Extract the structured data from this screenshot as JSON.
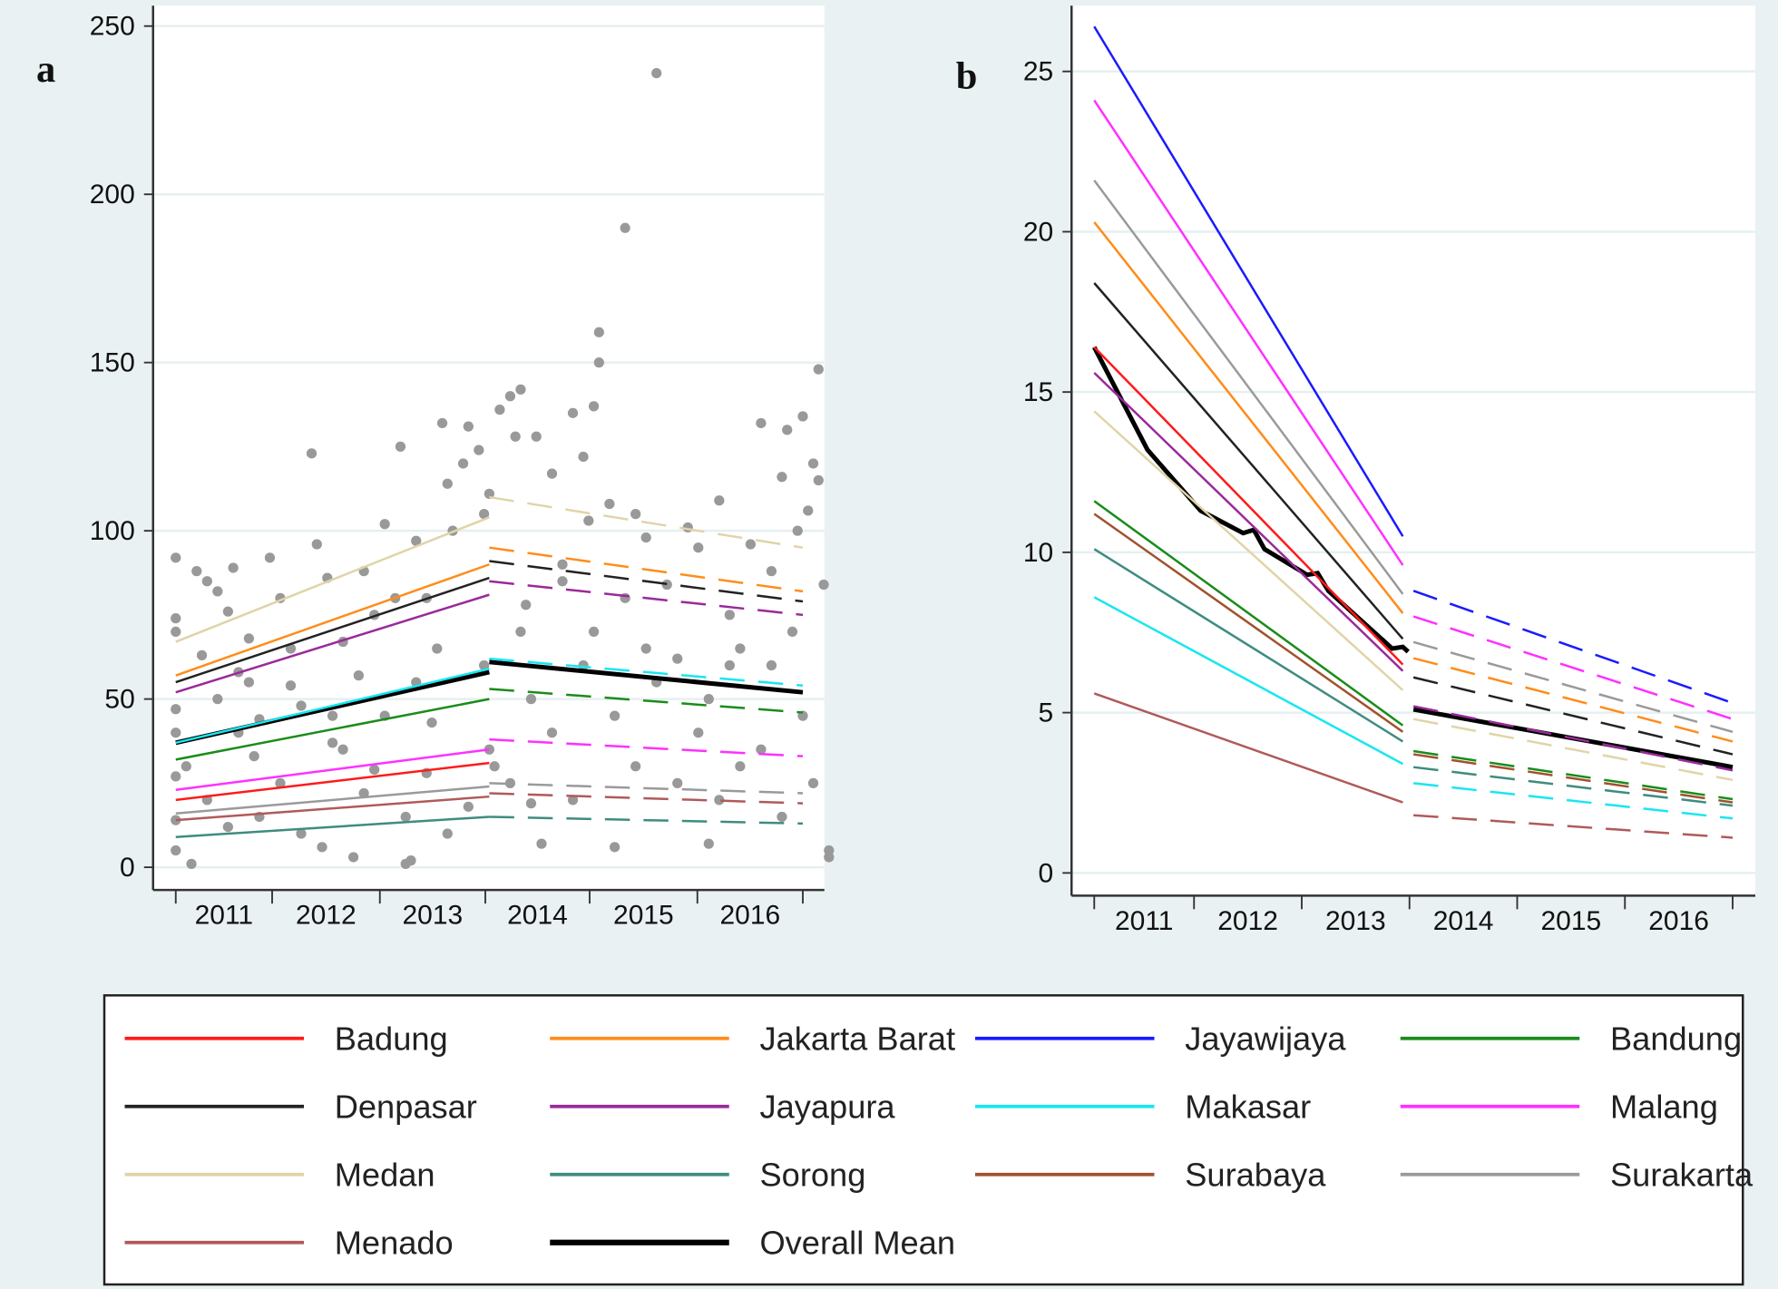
{
  "legend": {
    "items": [
      {
        "name": "Badung",
        "color": "#ff1a1a",
        "width": 2
      },
      {
        "name": "Jakarta Barat",
        "color": "#ff8c1a",
        "width": 2
      },
      {
        "name": "Jayawijaya",
        "color": "#1a1aff",
        "width": 2
      },
      {
        "name": "Bandung",
        "color": "#1a8c1a",
        "width": 2
      },
      {
        "name": "Denpasar",
        "color": "#222222",
        "width": 2
      },
      {
        "name": "Jayapura",
        "color": "#9a2a9a",
        "width": 2
      },
      {
        "name": "Makasar",
        "color": "#19e6f0",
        "width": 2
      },
      {
        "name": "Malang",
        "color": "#ff30ff",
        "width": 2
      },
      {
        "name": "Medan",
        "color": "#e0d4a8",
        "width": 2
      },
      {
        "name": "Sorong",
        "color": "#3e8c80",
        "width": 2
      },
      {
        "name": "Surabaya",
        "color": "#a0522d",
        "width": 2
      },
      {
        "name": "Surakarta",
        "color": "#9a9a9a",
        "width": 2
      },
      {
        "name": "Menado",
        "color": "#b05a5a",
        "width": 2
      },
      {
        "name": "Overall Mean",
        "color": "#000000",
        "width": 4
      }
    ]
  },
  "chart_data": [
    {
      "type": "line",
      "panel_label": "a",
      "ylim": [
        0,
        250
      ],
      "yticks": [
        0,
        50,
        100,
        150,
        200,
        250
      ],
      "xticks": [
        "2011",
        "2012",
        "2013",
        "2014",
        "2015",
        "2016"
      ],
      "grid": true,
      "series": [
        {
          "name": "Medan",
          "pre": [
            67,
            104
          ],
          "post": [
            110,
            95
          ]
        },
        {
          "name": "Jakarta Barat",
          "pre": [
            57,
            90
          ],
          "post": [
            95,
            82
          ]
        },
        {
          "name": "Denpasar",
          "pre": [
            55,
            86
          ],
          "post": [
            91,
            79
          ]
        },
        {
          "name": "Jayapura",
          "pre": [
            52,
            81
          ],
          "post": [
            85,
            75
          ]
        },
        {
          "name": "Makasar",
          "pre": [
            37,
            59
          ],
          "post": [
            62,
            54
          ]
        },
        {
          "name": "Overall Mean",
          "pre": [
            37,
            58
          ],
          "post": [
            61,
            52
          ]
        },
        {
          "name": "Bandung",
          "pre": [
            32,
            50
          ],
          "post": [
            53,
            46
          ]
        },
        {
          "name": "Malang",
          "pre": [
            23,
            35
          ],
          "post": [
            38,
            33
          ]
        },
        {
          "name": "Badung",
          "pre": [
            20,
            31
          ],
          "post": null
        },
        {
          "name": "Surakarta",
          "pre": [
            16,
            24
          ],
          "post": [
            25,
            22
          ]
        },
        {
          "name": "Menado",
          "pre": [
            14,
            21
          ],
          "post": [
            22,
            19
          ]
        },
        {
          "name": "Sorong",
          "pre": [
            9,
            15
          ],
          "post": [
            15,
            13
          ]
        }
      ],
      "points": [
        [
          2011.0,
          92
        ],
        [
          2011.0,
          74
        ],
        [
          2011.0,
          70
        ],
        [
          2011.0,
          47
        ],
        [
          2011.0,
          40
        ],
        [
          2011.0,
          27
        ],
        [
          2011.0,
          14
        ],
        [
          2011.0,
          5
        ],
        [
          2011.15,
          1
        ],
        [
          2011.2,
          88
        ],
        [
          2011.25,
          63
        ],
        [
          2011.3,
          85
        ],
        [
          2011.4,
          82
        ],
        [
          2011.5,
          76
        ],
        [
          2011.55,
          89
        ],
        [
          2011.6,
          58
        ],
        [
          2011.7,
          68
        ],
        [
          2011.75,
          33
        ],
        [
          2011.8,
          44
        ],
        [
          2011.9,
          92
        ],
        [
          2012.0,
          80
        ],
        [
          2012.1,
          54
        ],
        [
          2012.2,
          48
        ],
        [
          2012.3,
          123
        ],
        [
          2012.35,
          96
        ],
        [
          2012.45,
          86
        ],
        [
          2012.5,
          37
        ],
        [
          2012.6,
          67
        ],
        [
          2012.7,
          3
        ],
        [
          2012.75,
          57
        ],
        [
          2012.8,
          88
        ],
        [
          2012.9,
          29
        ],
        [
          2013.0,
          102
        ],
        [
          2013.1,
          80
        ],
        [
          2013.15,
          125
        ],
        [
          2013.2,
          1
        ],
        [
          2013.25,
          2
        ],
        [
          2013.3,
          97
        ],
        [
          2013.4,
          80
        ],
        [
          2013.45,
          43
        ],
        [
          2013.55,
          132
        ],
        [
          2013.6,
          114
        ],
        [
          2013.65,
          100
        ],
        [
          2013.75,
          120
        ],
        [
          2013.8,
          131
        ],
        [
          2013.9,
          124
        ],
        [
          2013.95,
          105
        ],
        [
          2013.95,
          60
        ],
        [
          2014.0,
          111
        ],
        [
          2014.05,
          30
        ],
        [
          2014.1,
          136
        ],
        [
          2014.2,
          140
        ],
        [
          2014.25,
          128
        ],
        [
          2014.3,
          142
        ],
        [
          2014.35,
          78
        ],
        [
          2014.4,
          19
        ],
        [
          2014.45,
          128
        ],
        [
          2014.5,
          7
        ],
        [
          2014.6,
          117
        ],
        [
          2014.7,
          90
        ],
        [
          2014.8,
          135
        ],
        [
          2014.9,
          122
        ],
        [
          2014.95,
          103
        ],
        [
          2015.0,
          137
        ],
        [
          2015.05,
          159
        ],
        [
          2015.05,
          150
        ],
        [
          2015.15,
          108
        ],
        [
          2015.2,
          6
        ],
        [
          2015.3,
          190
        ],
        [
          2015.4,
          105
        ],
        [
          2015.5,
          98
        ],
        [
          2015.6,
          236
        ],
        [
          2015.7,
          84
        ],
        [
          2015.8,
          62
        ],
        [
          2015.9,
          101
        ],
        [
          2016.0,
          95
        ],
        [
          2016.1,
          7
        ],
        [
          2016.2,
          109
        ],
        [
          2016.3,
          60
        ],
        [
          2016.4,
          30
        ],
        [
          2016.5,
          96
        ],
        [
          2016.6,
          132
        ],
        [
          2016.7,
          88
        ],
        [
          2016.8,
          116
        ],
        [
          2016.85,
          130
        ],
        [
          2016.95,
          100
        ],
        [
          2017.0,
          134
        ],
        [
          2017.05,
          106
        ],
        [
          2017.1,
          120
        ],
        [
          2017.15,
          148
        ],
        [
          2017.15,
          115
        ],
        [
          2017.2,
          84
        ],
        [
          2017.25,
          5
        ],
        [
          2017.25,
          3
        ],
        [
          2011.1,
          30
        ],
        [
          2011.3,
          20
        ],
        [
          2011.5,
          12
        ],
        [
          2011.6,
          40
        ],
        [
          2011.8,
          15
        ],
        [
          2012.0,
          25
        ],
        [
          2012.2,
          10
        ],
        [
          2012.4,
          6
        ],
        [
          2012.6,
          35
        ],
        [
          2012.8,
          22
        ],
        [
          2013.0,
          45
        ],
        [
          2013.2,
          15
        ],
        [
          2013.4,
          28
        ],
        [
          2013.6,
          10
        ],
        [
          2013.8,
          18
        ],
        [
          2014.0,
          35
        ],
        [
          2014.2,
          25
        ],
        [
          2014.4,
          50
        ],
        [
          2014.6,
          40
        ],
        [
          2014.8,
          20
        ],
        [
          2015.0,
          70
        ],
        [
          2015.2,
          45
        ],
        [
          2015.4,
          30
        ],
        [
          2015.6,
          55
        ],
        [
          2015.8,
          25
        ],
        [
          2016.0,
          40
        ],
        [
          2016.2,
          20
        ],
        [
          2016.4,
          65
        ],
        [
          2016.6,
          35
        ],
        [
          2016.8,
          15
        ],
        [
          2017.0,
          45
        ],
        [
          2017.1,
          25
        ],
        [
          2011.4,
          50
        ],
        [
          2012.1,
          65
        ],
        [
          2012.9,
          75
        ],
        [
          2013.5,
          65
        ],
        [
          2014.3,
          70
        ],
        [
          2014.9,
          60
        ],
        [
          2015.5,
          65
        ],
        [
          2016.3,
          75
        ],
        [
          2016.9,
          70
        ],
        [
          2011.7,
          55
        ],
        [
          2012.5,
          45
        ],
        [
          2013.3,
          55
        ],
        [
          2014.7,
          85
        ],
        [
          2015.3,
          80
        ],
        [
          2016.1,
          50
        ],
        [
          2016.7,
          60
        ]
      ]
    },
    {
      "type": "line",
      "panel_label": "b",
      "ylim": [
        0,
        27
      ],
      "yticks": [
        0,
        5,
        10,
        15,
        20,
        25
      ],
      "xticks": [
        "2011",
        "2012",
        "2013",
        "2014",
        "2015",
        "2016"
      ],
      "grid": true,
      "series": [
        {
          "name": "Jayawijaya",
          "pre": [
            26.4,
            10.5
          ],
          "post": [
            8.8,
            5.3
          ]
        },
        {
          "name": "Malang",
          "pre": [
            24.1,
            9.6
          ],
          "post": [
            8.0,
            4.8
          ]
        },
        {
          "name": "Surakarta",
          "pre": [
            21.6,
            8.7
          ],
          "post": [
            7.2,
            4.4
          ]
        },
        {
          "name": "Jakarta Barat",
          "pre": [
            20.3,
            8.1
          ],
          "post": [
            6.7,
            4.1
          ]
        },
        {
          "name": "Denpasar",
          "pre": [
            18.4,
            7.3
          ],
          "post": [
            6.1,
            3.7
          ]
        },
        {
          "name": "Badung",
          "pre": [
            16.4,
            6.5
          ],
          "post": null
        },
        {
          "name": "Jayapura",
          "pre": [
            15.6,
            6.3
          ],
          "post": [
            5.2,
            3.2
          ]
        },
        {
          "name": "Medan",
          "pre": [
            14.4,
            5.7
          ],
          "post": [
            4.8,
            2.9
          ]
        },
        {
          "name": "Bandung",
          "pre": [
            11.6,
            4.6
          ],
          "post": [
            3.8,
            2.3
          ]
        },
        {
          "name": "Surabaya",
          "pre": [
            11.2,
            4.4
          ],
          "post": [
            3.7,
            2.2
          ]
        },
        {
          "name": "Sorong",
          "pre": [
            10.1,
            4.1
          ],
          "post": [
            3.3,
            2.1
          ]
        },
        {
          "name": "Makasar",
          "pre": [
            8.6,
            3.4
          ],
          "post": [
            2.8,
            1.7
          ]
        },
        {
          "name": "Menado",
          "pre": [
            5.6,
            2.2
          ],
          "post": [
            1.8,
            1.1
          ]
        },
        {
          "name": "Overall Mean",
          "pre_curve": [
            [
              2011,
              16.4
            ],
            [
              2011.5,
              13.2
            ],
            [
              2012,
              11.3
            ],
            [
              2012.4,
              10.6
            ],
            [
              2012.5,
              10.7
            ],
            [
              2012.6,
              10.1
            ],
            [
              2013,
              9.3
            ],
            [
              2013.1,
              9.35
            ],
            [
              2013.2,
              8.8
            ],
            [
              2013.6,
              7.6
            ],
            [
              2013.8,
              7.0
            ],
            [
              2013.9,
              7.05
            ],
            [
              2014,
              6.9
            ]
          ],
          "post": [
            5.1,
            3.3
          ]
        }
      ]
    }
  ]
}
